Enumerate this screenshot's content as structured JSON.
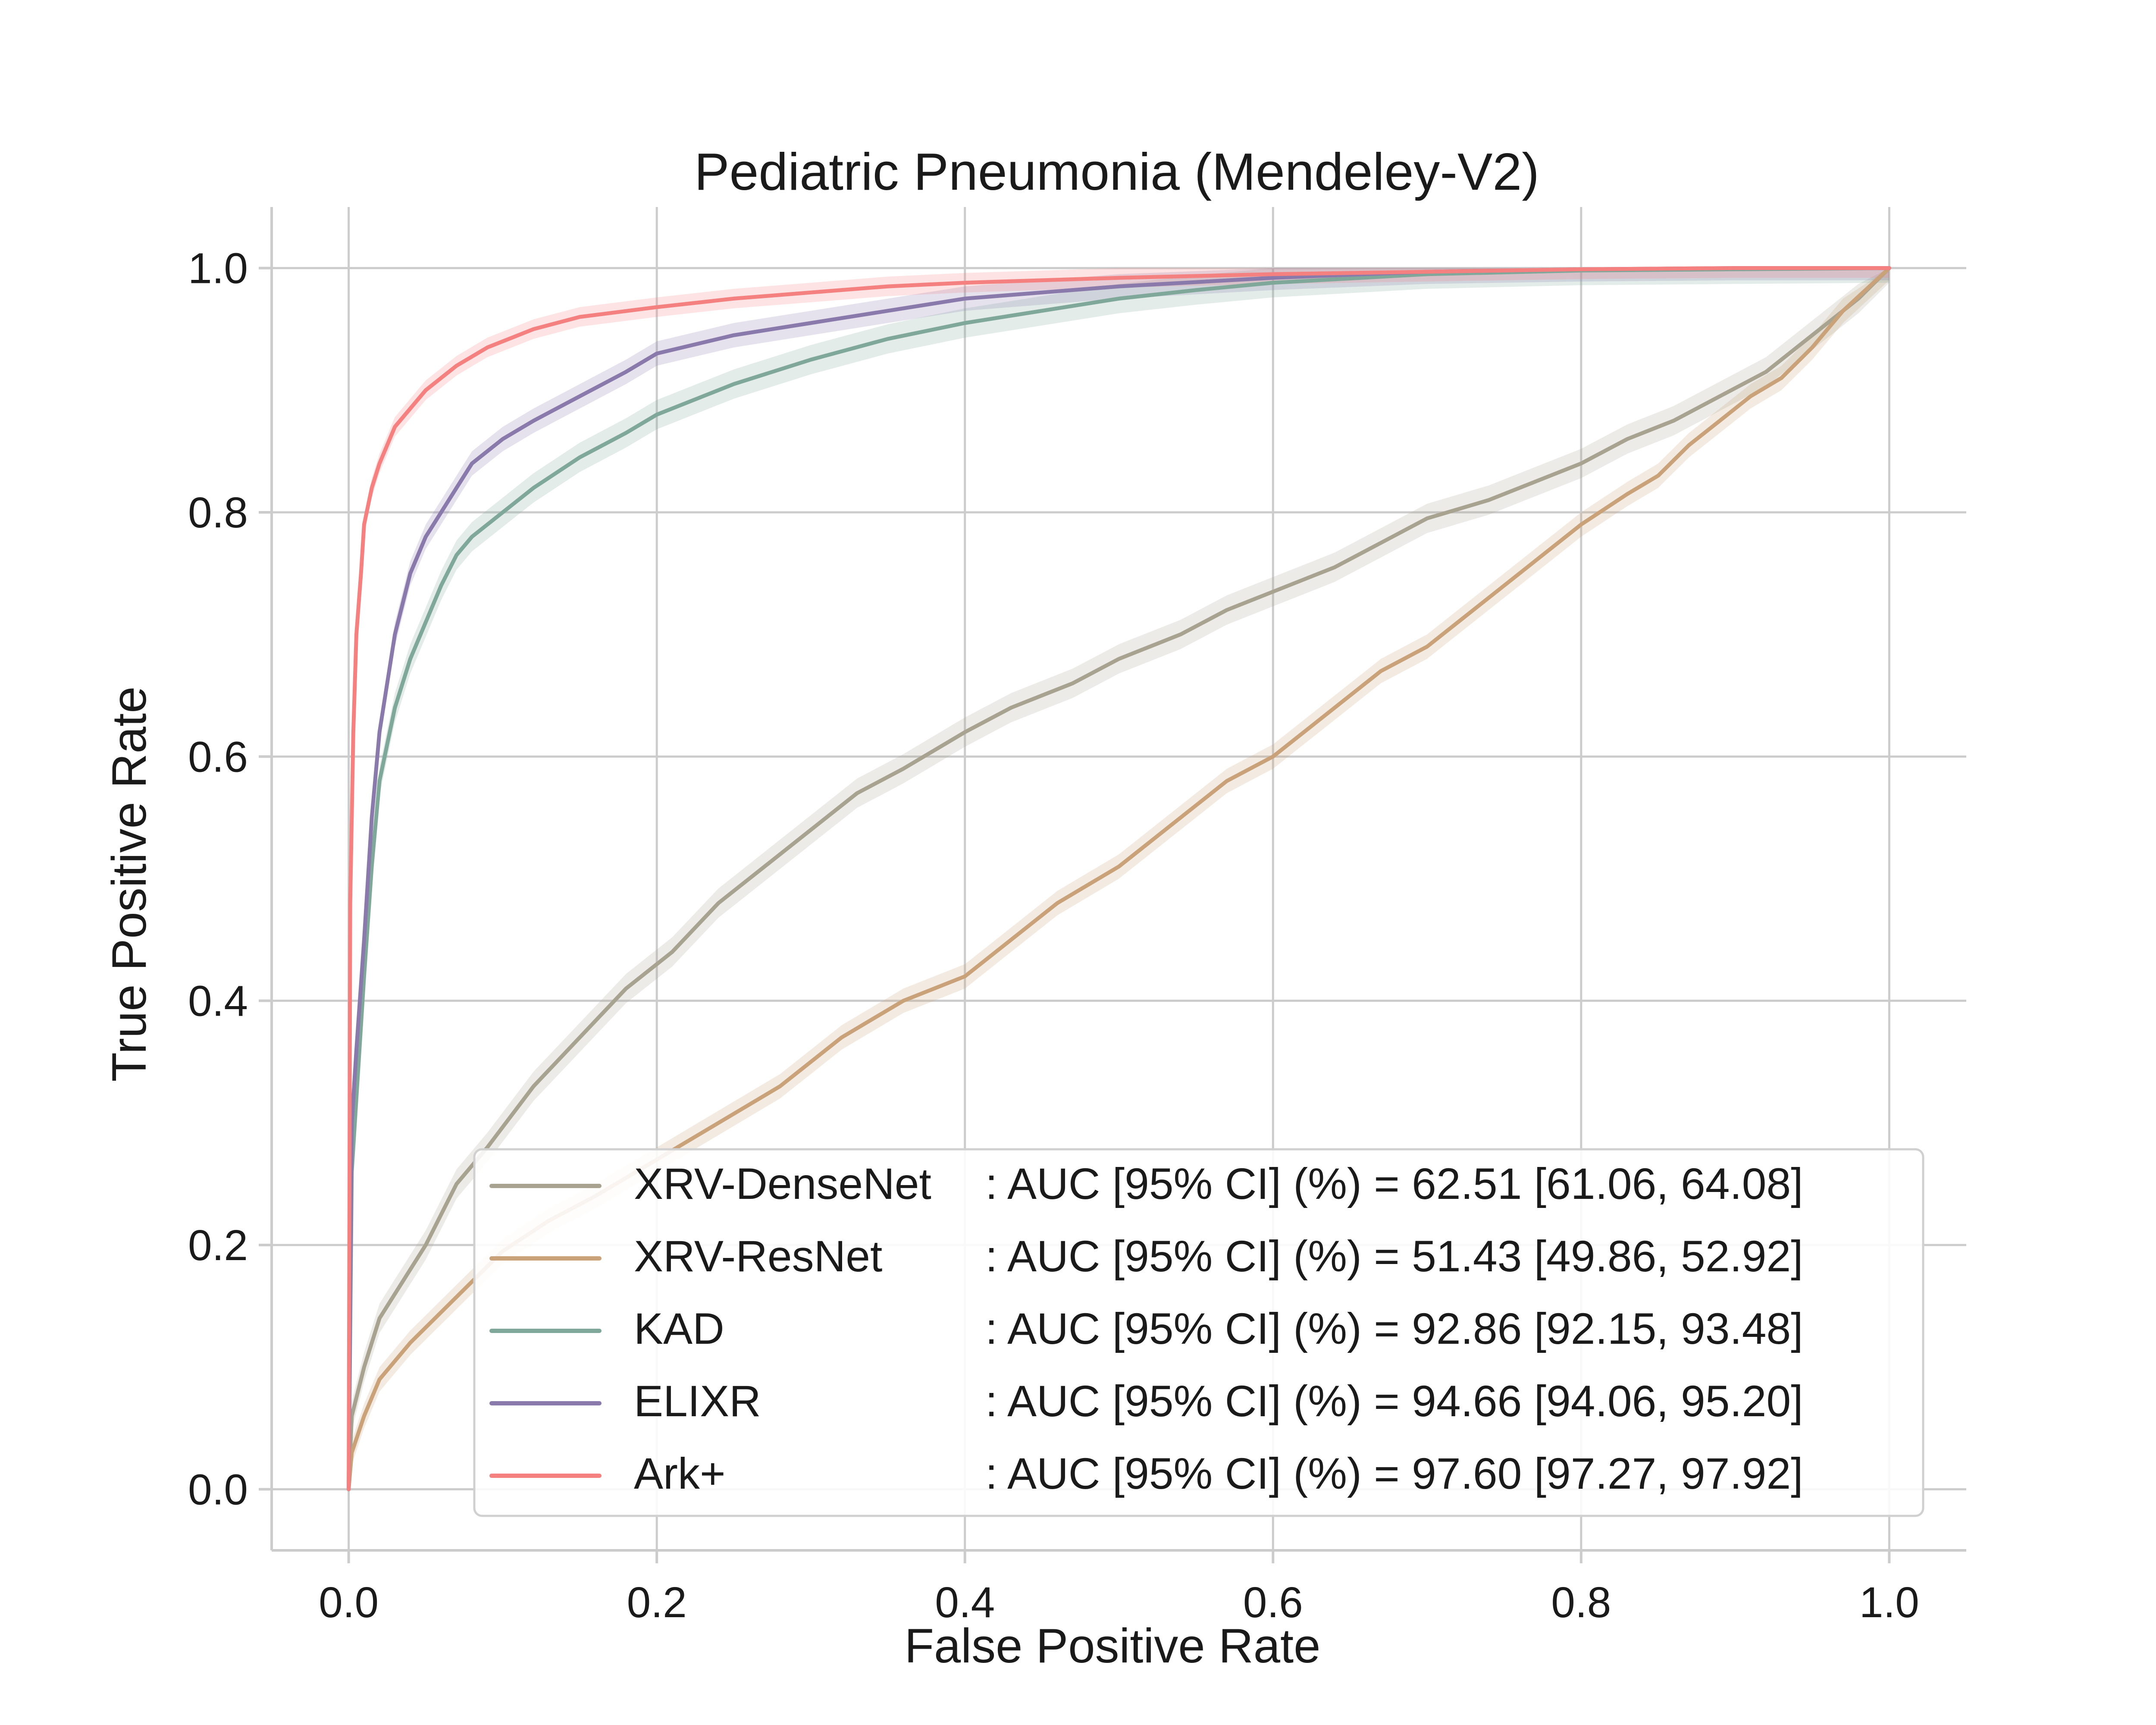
{
  "chart_data": {
    "type": "line",
    "title": "Pediatric Pneumonia (Mendeley-V2)",
    "xlabel": "False Positive Rate",
    "ylabel": "True Positive Rate",
    "xlim": [
      -0.05,
      1.05
    ],
    "ylim": [
      -0.05,
      1.05
    ],
    "x_ticks": [
      0.0,
      0.2,
      0.4,
      0.6,
      0.8,
      1.0
    ],
    "y_ticks": [
      0.0,
      0.2,
      0.4,
      0.6,
      0.8,
      1.0
    ],
    "x_tick_labels": [
      "0.0",
      "0.2",
      "0.4",
      "0.6",
      "0.8",
      "1.0"
    ],
    "y_tick_labels": [
      "0.0",
      "0.2",
      "0.4",
      "0.6",
      "0.8",
      "1.0"
    ],
    "grid": true,
    "legend_placement": "lower right",
    "series": [
      {
        "name": "XRV-DenseNet",
        "legend_text": ": AUC [95% CI] (%) = 62.51 [61.06, 64.08]",
        "color": "#a8a390",
        "x": [
          0,
          0.002,
          0.01,
          0.02,
          0.03,
          0.05,
          0.07,
          0.09,
          0.12,
          0.15,
          0.18,
          0.21,
          0.24,
          0.27,
          0.3,
          0.33,
          0.36,
          0.4,
          0.43,
          0.47,
          0.5,
          0.54,
          0.57,
          0.6,
          0.64,
          0.67,
          0.7,
          0.74,
          0.77,
          0.8,
          0.83,
          0.86,
          0.89,
          0.92,
          0.95,
          0.98,
          1.0
        ],
        "y": [
          0,
          0.06,
          0.1,
          0.14,
          0.16,
          0.2,
          0.25,
          0.28,
          0.33,
          0.37,
          0.41,
          0.44,
          0.48,
          0.51,
          0.54,
          0.57,
          0.59,
          0.62,
          0.64,
          0.66,
          0.68,
          0.7,
          0.72,
          0.735,
          0.755,
          0.775,
          0.795,
          0.81,
          0.825,
          0.84,
          0.86,
          0.875,
          0.895,
          0.915,
          0.945,
          0.975,
          1.0
        ],
        "ci_halfwidth": 0.012
      },
      {
        "name": "XRV-ResNet",
        "legend_text": ": AUC [95% CI] (%) = 51.43 [49.86, 52.92]",
        "color": "#c9a27a",
        "x": [
          0,
          0.002,
          0.01,
          0.02,
          0.04,
          0.06,
          0.08,
          0.1,
          0.13,
          0.16,
          0.2,
          0.24,
          0.28,
          0.32,
          0.36,
          0.4,
          0.43,
          0.46,
          0.5,
          0.54,
          0.57,
          0.6,
          0.63,
          0.67,
          0.7,
          0.72,
          0.75,
          0.78,
          0.8,
          0.83,
          0.85,
          0.87,
          0.89,
          0.91,
          0.93,
          0.95,
          0.97,
          1.0
        ],
        "y": [
          0,
          0.03,
          0.06,
          0.09,
          0.12,
          0.145,
          0.17,
          0.195,
          0.22,
          0.24,
          0.27,
          0.3,
          0.33,
          0.37,
          0.4,
          0.42,
          0.45,
          0.48,
          0.51,
          0.55,
          0.58,
          0.6,
          0.63,
          0.67,
          0.69,
          0.71,
          0.74,
          0.77,
          0.79,
          0.815,
          0.83,
          0.855,
          0.875,
          0.895,
          0.91,
          0.935,
          0.965,
          1.0
        ],
        "ci_halfwidth": 0.01
      },
      {
        "name": "KAD",
        "legend_text": ": AUC [95% CI] (%) = 92.86 [92.15, 93.48]",
        "color": "#7fa89a",
        "x": [
          0,
          0.002,
          0.005,
          0.01,
          0.015,
          0.02,
          0.03,
          0.04,
          0.05,
          0.06,
          0.07,
          0.08,
          0.1,
          0.12,
          0.15,
          0.18,
          0.2,
          0.25,
          0.3,
          0.35,
          0.4,
          0.45,
          0.5,
          0.55,
          0.6,
          0.7,
          0.8,
          0.9,
          1.0
        ],
        "y": [
          0,
          0.26,
          0.32,
          0.42,
          0.51,
          0.58,
          0.64,
          0.68,
          0.71,
          0.74,
          0.765,
          0.78,
          0.8,
          0.82,
          0.845,
          0.865,
          0.88,
          0.905,
          0.925,
          0.942,
          0.955,
          0.965,
          0.975,
          0.982,
          0.988,
          0.995,
          0.998,
          0.999,
          1.0
        ],
        "ci_halfwidth": 0.012
      },
      {
        "name": "ELIXR",
        "legend_text": ": AUC [95% CI] (%) = 94.66 [94.06, 95.20]",
        "color": "#8a79ab",
        "x": [
          0,
          0.002,
          0.005,
          0.01,
          0.015,
          0.02,
          0.03,
          0.04,
          0.05,
          0.06,
          0.07,
          0.08,
          0.1,
          0.12,
          0.15,
          0.18,
          0.2,
          0.25,
          0.3,
          0.35,
          0.4,
          0.45,
          0.5,
          0.6,
          0.7,
          0.8,
          0.9,
          1.0
        ],
        "y": [
          0,
          0.3,
          0.36,
          0.45,
          0.55,
          0.62,
          0.7,
          0.75,
          0.78,
          0.8,
          0.82,
          0.84,
          0.86,
          0.875,
          0.895,
          0.915,
          0.93,
          0.945,
          0.955,
          0.965,
          0.975,
          0.98,
          0.985,
          0.992,
          0.997,
          0.999,
          1.0,
          1.0
        ],
        "ci_halfwidth": 0.01
      },
      {
        "name": "Ark+",
        "legend_text": ": AUC [95% CI] (%) = 97.60 [97.27, 97.92]",
        "color": "#f48080",
        "x": [
          0,
          0.001,
          0.003,
          0.005,
          0.008,
          0.01,
          0.015,
          0.02,
          0.03,
          0.04,
          0.05,
          0.07,
          0.09,
          0.12,
          0.15,
          0.2,
          0.25,
          0.3,
          0.35,
          0.4,
          0.5,
          0.6,
          0.7,
          0.8,
          0.9,
          1.0
        ],
        "y": [
          0,
          0.48,
          0.62,
          0.7,
          0.75,
          0.79,
          0.82,
          0.84,
          0.87,
          0.885,
          0.9,
          0.92,
          0.935,
          0.95,
          0.96,
          0.968,
          0.975,
          0.98,
          0.985,
          0.988,
          0.992,
          0.995,
          0.997,
          0.999,
          1.0,
          1.0
        ],
        "ci_halfwidth": 0.008
      }
    ]
  }
}
